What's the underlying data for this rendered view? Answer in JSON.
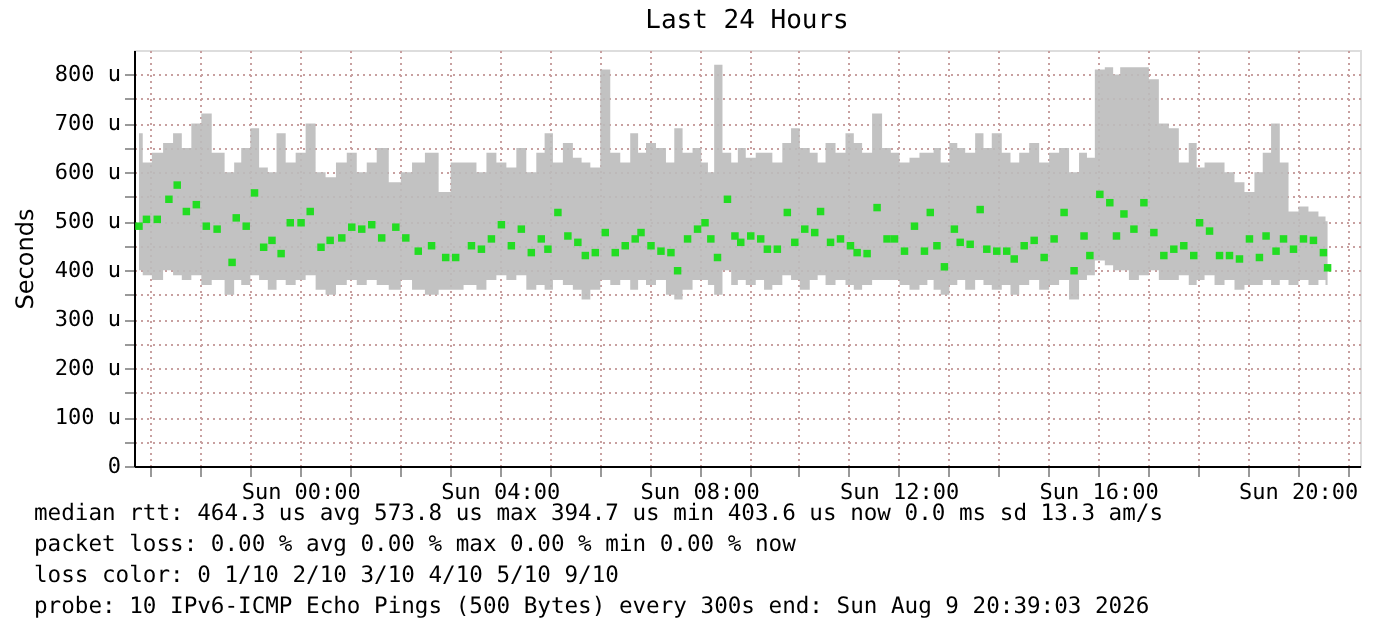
{
  "chart_data": {
    "type": "scatter",
    "title": "Last 24 Hours",
    "ylabel": "Seconds",
    "xlim": [
      "2026-08-08T20:40",
      "2026-08-09T21:15"
    ],
    "ylim": [
      0,
      850
    ],
    "xticks": [
      {
        "value": "2026-08-08T21:00",
        "label": null
      },
      {
        "value": "2026-08-08T22:00",
        "label": null
      },
      {
        "value": "2026-08-08T23:00",
        "label": null
      },
      {
        "value": "2026-08-09T00:00",
        "label": "Sun 00:00"
      },
      {
        "value": "2026-08-09T01:00",
        "label": null
      },
      {
        "value": "2026-08-09T02:00",
        "label": null
      },
      {
        "value": "2026-08-09T03:00",
        "label": null
      },
      {
        "value": "2026-08-09T04:00",
        "label": "Sun 04:00"
      },
      {
        "value": "2026-08-09T05:00",
        "label": null
      },
      {
        "value": "2026-08-09T06:00",
        "label": null
      },
      {
        "value": "2026-08-09T07:00",
        "label": null
      },
      {
        "value": "2026-08-09T08:00",
        "label": "Sun 08:00"
      },
      {
        "value": "2026-08-09T09:00",
        "label": null
      },
      {
        "value": "2026-08-09T10:00",
        "label": null
      },
      {
        "value": "2026-08-09T11:00",
        "label": null
      },
      {
        "value": "2026-08-09T12:00",
        "label": "Sun 12:00"
      },
      {
        "value": "2026-08-09T13:00",
        "label": null
      },
      {
        "value": "2026-08-09T14:00",
        "label": null
      },
      {
        "value": "2026-08-09T15:00",
        "label": null
      },
      {
        "value": "2026-08-09T16:00",
        "label": "Sun 16:00"
      },
      {
        "value": "2026-08-09T17:00",
        "label": null
      },
      {
        "value": "2026-08-09T18:00",
        "label": null
      },
      {
        "value": "2026-08-09T19:00",
        "label": null
      },
      {
        "value": "2026-08-09T20:00",
        "label": "Sun 20:00"
      },
      {
        "value": "2026-08-09T21:00",
        "label": null
      }
    ],
    "yticks": [
      0,
      {
        "value": 50,
        "label": null
      },
      {
        "value": 100,
        "label": "100 u"
      },
      {
        "value": 150,
        "label": null
      },
      {
        "value": 200,
        "label": "200 u"
      },
      {
        "value": 250,
        "label": null
      },
      {
        "value": 300,
        "label": "300 u"
      },
      {
        "value": 350,
        "label": null
      },
      {
        "value": 400,
        "label": "400 u"
      },
      {
        "value": 450,
        "label": null
      },
      {
        "value": 500,
        "label": "500 u"
      },
      {
        "value": 550,
        "label": null
      },
      {
        "value": 600,
        "label": "600 u"
      },
      {
        "value": 650,
        "label": null
      },
      {
        "value": 700,
        "label": "700 u"
      },
      {
        "value": 750,
        "label": null
      },
      {
        "value": 800,
        "label": "800 u"
      }
    ],
    "grid": true,
    "marker": "square",
    "x": [
      "2026-08-08T20:46",
      "2026-08-08T20:55",
      "2026-08-08T21:08",
      "2026-08-08T21:22",
      "2026-08-08T21:32",
      "2026-08-08T21:43",
      "2026-08-08T21:55",
      "2026-08-08T22:07",
      "2026-08-08T22:20",
      "2026-08-08T22:38",
      "2026-08-08T22:43",
      "2026-08-08T22:55",
      "2026-08-08T23:05",
      "2026-08-08T23:16",
      "2026-08-08T23:26",
      "2026-08-08T23:37",
      "2026-08-08T23:48",
      "2026-08-09T00:01",
      "2026-08-09T00:12",
      "2026-08-09T00:25",
      "2026-08-09T00:36",
      "2026-08-09T00:50",
      "2026-08-09T01:02",
      "2026-08-09T01:14",
      "2026-08-09T01:26",
      "2026-08-09T01:38",
      "2026-08-09T01:55",
      "2026-08-09T02:07",
      "2026-08-09T02:22",
      "2026-08-09T02:38",
      "2026-08-09T02:55",
      "2026-08-09T03:07",
      "2026-08-09T03:26",
      "2026-08-09T03:38",
      "2026-08-09T03:50",
      "2026-08-09T04:02",
      "2026-08-09T04:14",
      "2026-08-09T04:26",
      "2026-08-09T04:38",
      "2026-08-09T04:50",
      "2026-08-09T04:58",
      "2026-08-09T05:10",
      "2026-08-09T05:22",
      "2026-08-09T05:34",
      "2026-08-09T05:43",
      "2026-08-09T05:55",
      "2026-08-09T06:07",
      "2026-08-09T06:19",
      "2026-08-09T06:31",
      "2026-08-09T06:43",
      "2026-08-09T06:50",
      "2026-08-09T07:02",
      "2026-08-09T07:14",
      "2026-08-09T07:26",
      "2026-08-09T07:34",
      "2026-08-09T07:46",
      "2026-08-09T07:58",
      "2026-08-09T08:07",
      "2026-08-09T08:14",
      "2026-08-09T08:22",
      "2026-08-09T08:34",
      "2026-08-09T08:43",
      "2026-08-09T08:50",
      "2026-08-09T09:02",
      "2026-08-09T09:14",
      "2026-08-09T09:22",
      "2026-08-09T09:34",
      "2026-08-09T09:46",
      "2026-08-09T09:55",
      "2026-08-09T10:07",
      "2026-08-09T10:19",
      "2026-08-09T10:26",
      "2026-08-09T10:38",
      "2026-08-09T10:50",
      "2026-08-09T11:02",
      "2026-08-09T11:10",
      "2026-08-09T11:22",
      "2026-08-09T11:34",
      "2026-08-09T11:46",
      "2026-08-09T11:55",
      "2026-08-09T12:07",
      "2026-08-09T12:19",
      "2026-08-09T12:31",
      "2026-08-09T12:38",
      "2026-08-09T12:46",
      "2026-08-09T12:55",
      "2026-08-09T13:07",
      "2026-08-09T13:14",
      "2026-08-09T13:26",
      "2026-08-09T13:38",
      "2026-08-09T13:46",
      "2026-08-09T13:58",
      "2026-08-09T14:10",
      "2026-08-09T14:19",
      "2026-08-09T14:31",
      "2026-08-09T14:43",
      "2026-08-09T14:55",
      "2026-08-09T15:07",
      "2026-08-09T15:19",
      "2026-08-09T15:31",
      "2026-08-09T15:43",
      "2026-08-09T15:50",
      "2026-08-09T16:02",
      "2026-08-09T16:14",
      "2026-08-09T16:22",
      "2026-08-09T16:31",
      "2026-08-09T16:43",
      "2026-08-09T16:55",
      "2026-08-09T17:07",
      "2026-08-09T17:19",
      "2026-08-09T17:31",
      "2026-08-09T17:43",
      "2026-08-09T17:55",
      "2026-08-09T18:02",
      "2026-08-09T18:14",
      "2026-08-09T18:26",
      "2026-08-09T18:38",
      "2026-08-09T18:50",
      "2026-08-09T19:02",
      "2026-08-09T19:14",
      "2026-08-09T19:22",
      "2026-08-09T19:34",
      "2026-08-09T19:43",
      "2026-08-09T19:55",
      "2026-08-09T20:07",
      "2026-08-09T20:19",
      "2026-08-09T20:31",
      "2026-08-09T20:36"
    ],
    "series": [
      {
        "color": "#22dd22",
        "values": [
          490,
          504,
          504,
          545,
          574,
          520,
          534,
          490,
          484,
          416,
          507,
          490,
          558,
          447,
          461,
          434,
          497,
          497,
          520,
          447,
          461,
          466,
          488,
          484,
          493,
          466,
          488,
          466,
          439,
          450,
          426,
          426,
          450,
          443,
          464,
          493,
          450,
          484,
          436,
          464,
          443,
          518,
          470,
          457,
          430,
          436,
          477,
          436,
          450,
          464,
          477,
          450,
          439,
          436,
          399,
          464,
          484,
          497,
          464,
          426,
          545,
          470,
          457,
          470,
          464,
          443,
          443,
          518,
          457,
          484,
          477,
          520,
          457,
          464,
          450,
          436,
          434,
          528,
          464,
          464,
          439,
          490,
          439,
          518,
          450,
          407,
          484,
          457,
          453,
          524,
          443,
          439,
          439,
          423,
          450,
          461,
          426,
          464,
          518,
          399,
          470,
          430,
          555,
          538,
          470,
          515,
          484,
          538,
          477,
          430,
          443,
          450,
          430,
          497,
          480,
          430,
          430,
          423,
          464,
          426,
          470,
          439,
          464,
          443,
          464,
          461,
          436,
          405
        ],
        "lower": [
          400,
          390,
          380,
          400,
          390,
          380,
          390,
          370,
          380,
          350,
          380,
          370,
          390,
          380,
          360,
          380,
          370,
          380,
          390,
          360,
          350,
          370,
          380,
          370,
          380,
          370,
          360,
          380,
          360,
          350,
          360,
          360,
          370,
          360,
          380,
          390,
          380,
          390,
          360,
          370,
          360,
          380,
          370,
          360,
          340,
          360,
          380,
          370,
          380,
          360,
          380,
          370,
          380,
          350,
          340,
          360,
          380,
          380,
          370,
          350,
          400,
          370,
          380,
          370,
          380,
          360,
          370,
          390,
          380,
          360,
          380,
          390,
          370,
          380,
          370,
          360,
          370,
          380,
          380,
          380,
          370,
          360,
          370,
          380,
          360,
          350,
          370,
          380,
          360,
          380,
          370,
          360,
          370,
          350,
          370,
          380,
          360,
          370,
          380,
          340,
          380,
          390,
          420,
          410,
          400,
          400,
          380,
          390,
          400,
          380,
          380,
          390,
          370,
          380,
          390,
          370,
          380,
          360,
          370,
          370,
          380,
          370,
          380,
          370,
          380,
          370,
          380,
          370
        ],
        "upper": [
          680,
          620,
          640,
          660,
          680,
          650,
          700,
          720,
          640,
          600,
          620,
          650,
          690,
          610,
          600,
          680,
          620,
          640,
          700,
          600,
          590,
          620,
          640,
          600,
          620,
          650,
          580,
          600,
          620,
          640,
          560,
          620,
          620,
          600,
          640,
          620,
          610,
          650,
          600,
          640,
          680,
          620,
          660,
          630,
          620,
          610,
          810,
          640,
          620,
          680,
          640,
          660,
          650,
          620,
          690,
          640,
          650,
          620,
          600,
          820,
          640,
          620,
          650,
          630,
          640,
          640,
          620,
          660,
          690,
          650,
          640,
          620,
          660,
          640,
          680,
          660,
          640,
          720,
          650,
          640,
          620,
          630,
          640,
          640,
          650,
          620,
          660,
          650,
          640,
          680,
          650,
          680,
          640,
          620,
          640,
          660,
          620,
          640,
          650,
          600,
          640,
          630,
          810,
          815,
          800,
          815,
          815,
          815,
          790,
          700,
          690,
          620,
          660,
          610,
          620,
          620,
          600,
          580,
          560,
          600,
          640,
          700,
          620,
          520,
          530,
          520,
          510,
          500
        ]
      }
    ],
    "annotations": [
      "median rtt:  464.3 us avg   573.8 us max   394.7 us min   403.6 us now   0.0 ms sd  13.3   am/s",
      "packet loss: 0.00 % avg  0.00 % max  0.00 % min  0.00 % now",
      "loss color:    0    1/10    2/10    3/10    4/10    5/10    9/10",
      "probe:        10 IPv6-ICMP Echo Pings (500 Bytes) every 300s       end: Sun Aug  9 20:39:03 2026"
    ]
  }
}
